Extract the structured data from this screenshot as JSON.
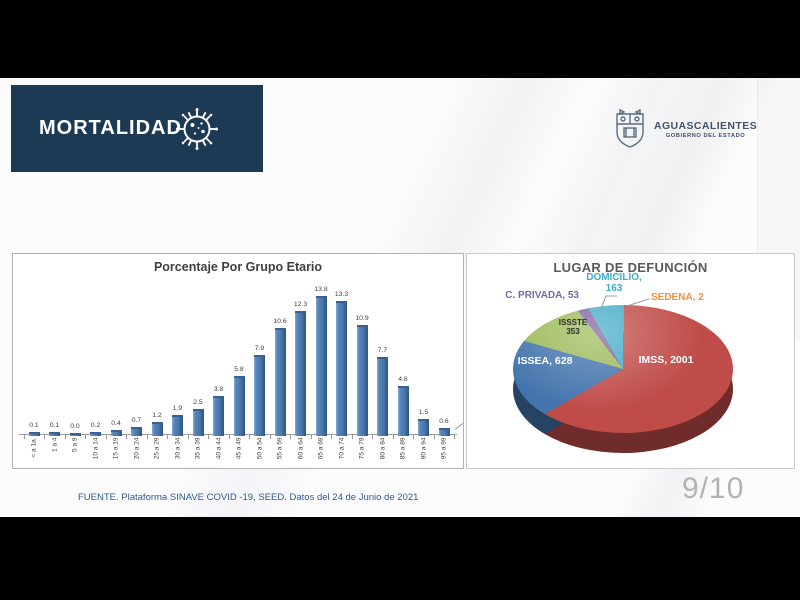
{
  "header": {
    "title": "MORTALIDAD",
    "logo_org": "AGUASCALIENTES",
    "logo_sub": "GOBIERNO DEL ESTADO"
  },
  "footer": {
    "source": "FUENTE. Plataforma SINAVE COVID -19, SEED. Datos del 24 de Junio de 2021",
    "page_indicator": "9/10"
  },
  "colors": {
    "header_bg": "#1d3a55",
    "bar_blue": "#4f81bd",
    "source_text": "#2e5b8f",
    "page_num_gray": "#b3b3b3"
  },
  "icons": {
    "virus": "virus-icon",
    "crest": "state-crest-icon"
  },
  "chart_data": [
    {
      "type": "bar",
      "title": "Porcentaje Por Grupo Etario",
      "categories": [
        "< a 1a.",
        "1 a 4",
        "5 a 9",
        "10 a 14",
        "15 a 19",
        "20 a 24",
        "25 a 29",
        "30 a 34",
        "35 a 39",
        "40 a 44",
        "45 a 49",
        "50 a 54",
        "55 a 59",
        "60 a 64",
        "65 a 69",
        "70 a 74",
        "75 a 79",
        "80 a 84",
        "85 a 89",
        "90 a 94",
        "95 a 99"
      ],
      "values": [
        0.1,
        0.1,
        0.0,
        0.2,
        0.4,
        0.7,
        1.2,
        1.9,
        2.5,
        3.8,
        5.8,
        7.9,
        10.6,
        12.3,
        13.8,
        13.3,
        10.9,
        7.7,
        4.8,
        1.5,
        0.6
      ],
      "bar_color": "#4f81bd",
      "ylim": [
        0,
        15
      ],
      "grid": false,
      "data_labels": true,
      "xlabel": "",
      "ylabel": ""
    },
    {
      "type": "pie",
      "title": "LUGAR DE DEFUNCIÓN",
      "effect": "3d",
      "slices": [
        {
          "label": "SEDENA",
          "value": 2,
          "color": "#f79646",
          "label_color": "#ed9144",
          "label_position": "outside"
        },
        {
          "label": "IMSS",
          "value": 2001,
          "color": "#bf4c49",
          "label_color": "#ffffff",
          "label_position": "inside"
        },
        {
          "label": "ISSEA",
          "value": 628,
          "color": "#4374ad",
          "label_color": "#ffffff",
          "label_position": "inside"
        },
        {
          "label": "ISSSTE",
          "value": 353,
          "color": "#9dba59",
          "label_color": "#2b2b2b",
          "label_position": "inside"
        },
        {
          "label": "C. PRIVADA",
          "value": 53,
          "color": "#8064a2",
          "label_color": "#7a68a6",
          "label_position": "outside"
        },
        {
          "label": "DOMICILIO",
          "value": 163,
          "color": "#44acc8",
          "label_color": "#3fabc9",
          "label_position": "outside"
        }
      ],
      "start_angle_deg": 0,
      "direction": "clockwise",
      "legend": false
    }
  ]
}
